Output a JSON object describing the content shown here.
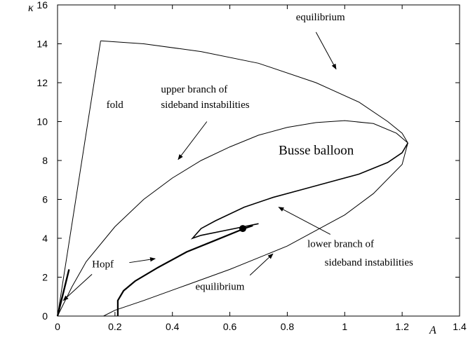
{
  "chart_data": {
    "type": "line",
    "x_label": "A",
    "y_label": "κ",
    "xlim": [
      0,
      1.4
    ],
    "ylim": [
      0,
      16
    ],
    "xticks": [
      0,
      0.2,
      0.4,
      0.6,
      0.8,
      1,
      1.2,
      1.4
    ],
    "yticks": [
      0,
      2,
      4,
      6,
      8,
      10,
      12,
      14,
      16
    ],
    "color": "#000000",
    "series": [
      {
        "x": [
          0,
          0.15
        ],
        "y": [
          0,
          14.15
        ]
      },
      {
        "x": [
          0.15,
          0.3,
          0.5,
          0.7,
          0.9,
          1.05,
          1.15,
          1.2,
          1.22
        ],
        "y": [
          14.15,
          14.0,
          13.6,
          13.0,
          12.0,
          11.0,
          10.0,
          9.4,
          8.9
        ]
      },
      {
        "x": [
          1.22,
          1.2,
          1.1,
          1.0,
          0.8,
          0.6,
          0.45,
          0.3,
          0.2,
          0.16
        ],
        "y": [
          8.9,
          7.8,
          6.3,
          5.2,
          3.6,
          2.4,
          1.6,
          0.8,
          0.3,
          0
        ]
      },
      {
        "x": [
          0,
          0.05,
          0.1,
          0.2,
          0.3,
          0.4,
          0.5,
          0.6,
          0.7,
          0.8,
          0.9,
          1.0,
          1.1,
          1.18,
          1.22
        ],
        "y": [
          0,
          1.5,
          2.8,
          4.6,
          6.0,
          7.1,
          8.0,
          8.7,
          9.3,
          9.7,
          9.95,
          10.05,
          9.9,
          9.4,
          8.9
        ]
      },
      {
        "x": [
          1.22,
          1.2,
          1.15,
          1.05,
          0.95,
          0.85,
          0.75,
          0.65,
          0.55,
          0.5,
          0.47,
          0.5,
          0.6,
          0.7
        ],
        "y": [
          8.9,
          8.4,
          7.9,
          7.3,
          6.9,
          6.5,
          6.1,
          5.6,
          4.9,
          4.5,
          4.0,
          4.15,
          4.45,
          4.75
        ]
      },
      {
        "x": [
          0.21,
          0.21,
          0.23,
          0.27,
          0.35,
          0.45,
          0.55,
          0.65,
          0.68
        ],
        "y": [
          0,
          0.8,
          1.3,
          1.8,
          2.5,
          3.3,
          3.9,
          4.5,
          4.65
        ]
      },
      {
        "x": [
          0,
          0.04
        ],
        "y": [
          0,
          2.4
        ]
      }
    ],
    "points": [
      {
        "x": 0.645,
        "y": 4.5
      }
    ],
    "annotations": [
      "equilibrium",
      "fold",
      "upper branch of",
      "sideband instabilities",
      "Busse balloon",
      "lower branch of",
      "sideband instabilities",
      "Hopf",
      "equilibrium"
    ]
  }
}
